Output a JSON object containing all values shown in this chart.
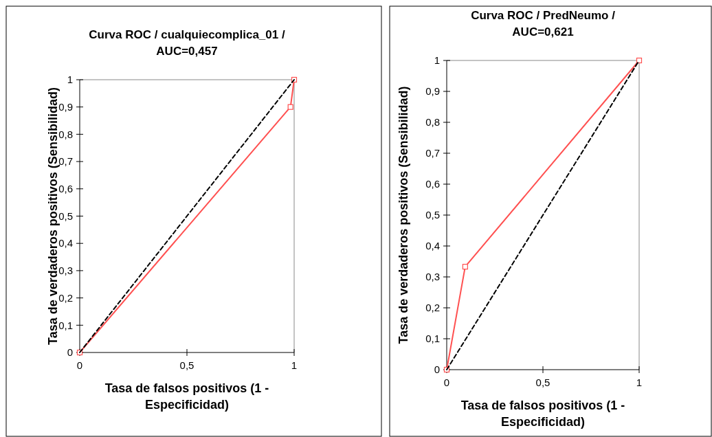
{
  "chart_data": [
    {
      "type": "line",
      "title": "Curva ROC / cualquiecomplica_01 / AUC=0,457",
      "xlabel": "Tasa de falsos positivos (1 - Especificidad)",
      "ylabel": "Tasa de verdaderos positivos (Sensibilidad)",
      "xlim": [
        0,
        1
      ],
      "ylim": [
        0,
        1
      ],
      "xticks": [
        {
          "value": 0,
          "label": "0"
        },
        {
          "value": 0.5,
          "label": "0,5"
        },
        {
          "value": 1,
          "label": "1"
        }
      ],
      "yticks": [
        {
          "value": 0,
          "label": "0"
        },
        {
          "value": 0.1,
          "label": "0,1"
        },
        {
          "value": 0.2,
          "label": "0,2"
        },
        {
          "value": 0.3,
          "label": "0,3"
        },
        {
          "value": 0.4,
          "label": "0,4"
        },
        {
          "value": 0.5,
          "label": "0,5"
        },
        {
          "value": 0.6,
          "label": "0,6"
        },
        {
          "value": 0.7,
          "label": "0,7"
        },
        {
          "value": 0.8,
          "label": "0,8"
        },
        {
          "value": 0.9,
          "label": "0,9"
        },
        {
          "value": 1,
          "label": "1"
        }
      ],
      "grid": false,
      "series": [
        {
          "color": "#ff5050",
          "x": [
            0,
            0.983,
            1
          ],
          "values": [
            0,
            0.9,
            1
          ],
          "marker": "square",
          "line_style": "solid"
        },
        {
          "color": "#000000",
          "x": [
            0,
            1
          ],
          "values": [
            0,
            1
          ],
          "line_style": "dashed"
        }
      ]
    },
    {
      "type": "line",
      "title": "Curva ROC / PredNeumo / AUC=0,621",
      "xlabel": "Tasa de falsos positivos (1 - Especificidad)",
      "ylabel": "Tasa de verdaderos positivos (Sensibilidad)",
      "xlim": [
        0,
        1
      ],
      "ylim": [
        0,
        1
      ],
      "xticks": [
        {
          "value": 0,
          "label": "0"
        },
        {
          "value": 0.5,
          "label": "0,5"
        },
        {
          "value": 1,
          "label": "1"
        }
      ],
      "yticks": [
        {
          "value": 0,
          "label": "0"
        },
        {
          "value": 0.1,
          "label": "0,1"
        },
        {
          "value": 0.2,
          "label": "0,2"
        },
        {
          "value": 0.3,
          "label": "0,3"
        },
        {
          "value": 0.4,
          "label": "0,4"
        },
        {
          "value": 0.5,
          "label": "0,5"
        },
        {
          "value": 0.6,
          "label": "0,6"
        },
        {
          "value": 0.7,
          "label": "0,7"
        },
        {
          "value": 0.8,
          "label": "0,8"
        },
        {
          "value": 0.9,
          "label": "0,9"
        },
        {
          "value": 1,
          "label": "1"
        }
      ],
      "grid": false,
      "series": [
        {
          "color": "#ff5050",
          "x": [
            0,
            0.096,
            1
          ],
          "values": [
            0,
            0.333,
            1
          ],
          "marker": "square",
          "line_style": "solid"
        },
        {
          "color": "#000000",
          "x": [
            0,
            1
          ],
          "values": [
            0,
            1
          ],
          "line_style": "dashed"
        }
      ]
    }
  ]
}
